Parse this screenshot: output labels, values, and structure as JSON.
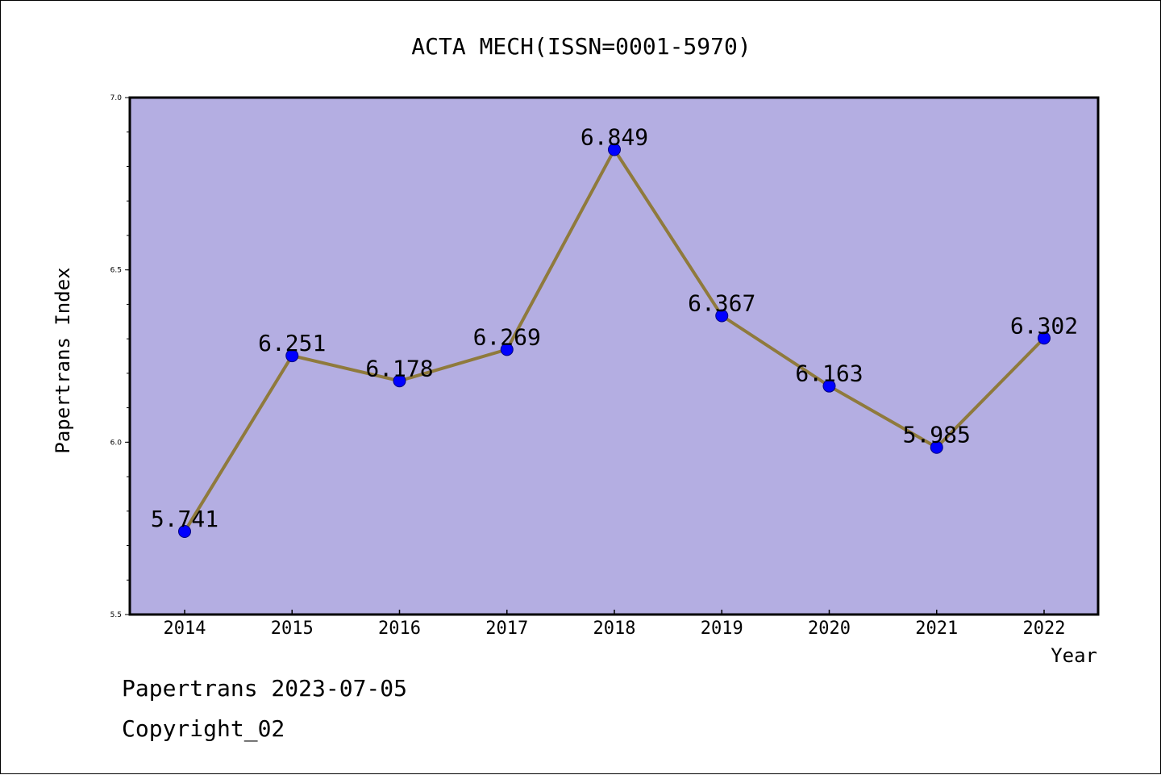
{
  "chart_data": {
    "type": "line",
    "title": "ACTA MECH(ISSN=0001-5970)",
    "xlabel": "Year",
    "ylabel": "Papertrans Index",
    "categories": [
      "2014",
      "2015",
      "2016",
      "2017",
      "2018",
      "2019",
      "2020",
      "2021",
      "2022"
    ],
    "series": [
      {
        "values": [
          5.741,
          6.251,
          6.178,
          6.269,
          6.849,
          6.367,
          6.163,
          5.985,
          6.302
        ],
        "data_labels": [
          "5.741",
          "6.251",
          "6.178",
          "6.269",
          "6.849",
          "6.367",
          "6.163",
          "5.985",
          "6.302"
        ]
      }
    ],
    "ylim": [
      5.5,
      7.0
    ],
    "yticks": [
      "5.5",
      "6.0",
      "6.5",
      "7.0"
    ],
    "grid": false,
    "colors": {
      "plot_background": "#b4aee2",
      "line": "#8f7a3c",
      "marker": "#0000ff",
      "marker_edge": "#000080"
    }
  },
  "footer": {
    "line1": "Papertrans 2023-07-05",
    "line2": "Copyright_02"
  }
}
